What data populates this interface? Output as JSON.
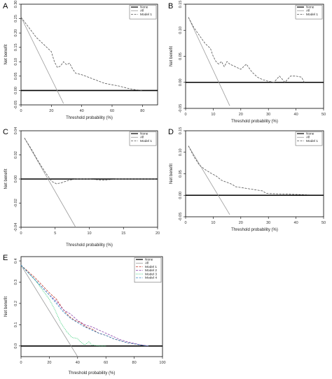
{
  "chart_data": [
    {
      "panel": "A",
      "type": "line",
      "xlabel": "Threshold probability (%)",
      "ylabel": "Net benefit",
      "xlim": [
        0,
        90
      ],
      "ylim": [
        -0.05,
        0.3
      ],
      "xticks": [
        0,
        20,
        40,
        60,
        80
      ],
      "yticks": [
        -0.05,
        0.0,
        0.05,
        0.1,
        0.15,
        0.2,
        0.25,
        0.3
      ],
      "ytick_labels": [
        "-0.05",
        "0.00",
        "0.05",
        "0.10",
        "0.15",
        "0.20",
        "0.25",
        "0.30"
      ],
      "legend": [
        "None",
        "All",
        "Model 1"
      ],
      "legend_position": "top-right",
      "series": [
        {
          "name": "None",
          "style": "solid",
          "color": "#000000",
          "width": 1.6,
          "x": [
            0,
            90
          ],
          "y": [
            0,
            0
          ]
        },
        {
          "name": "All",
          "style": "solid",
          "color": "#9a9a9a",
          "width": 0.8,
          "x": [
            0,
            28
          ],
          "y": [
            0.255,
            -0.045
          ]
        },
        {
          "name": "Model 1",
          "style": "dashed",
          "color": "#555555",
          "width": 0.8,
          "x": [
            0,
            5,
            10,
            15,
            20,
            22,
            24,
            26,
            28,
            30,
            32,
            34,
            36,
            40,
            45,
            50,
            55,
            60,
            65,
            70,
            75,
            80
          ],
          "y": [
            0.255,
            0.22,
            0.185,
            0.16,
            0.135,
            0.1,
            0.08,
            0.085,
            0.1,
            0.09,
            0.095,
            0.075,
            0.06,
            0.055,
            0.045,
            0.035,
            0.025,
            0.02,
            0.015,
            0.008,
            0.003,
            0.0
          ]
        }
      ]
    },
    {
      "panel": "B",
      "type": "line",
      "xlabel": "Threshold probability (%)",
      "ylabel": "Net benefit",
      "xlim": [
        0,
        50
      ],
      "ylim": [
        -0.05,
        0.15
      ],
      "xticks": [
        0,
        10,
        20,
        30,
        40,
        50
      ],
      "yticks": [
        -0.05,
        0.0,
        0.05,
        0.1,
        0.15
      ],
      "ytick_labels": [
        "-0.05",
        "0.00",
        "0.05",
        "0.10",
        "0.15"
      ],
      "legend": [
        "None",
        "All",
        "Model 1"
      ],
      "legend_position": "top-right",
      "series": [
        {
          "name": "None",
          "style": "solid",
          "color": "#000000",
          "width": 1.6,
          "x": [
            0,
            50
          ],
          "y": [
            0,
            0
          ]
        },
        {
          "name": "All",
          "style": "solid",
          "color": "#9a9a9a",
          "width": 0.8,
          "x": [
            1,
            16
          ],
          "y": [
            0.125,
            -0.045
          ]
        },
        {
          "name": "Model 1",
          "style": "dashed",
          "color": "#555555",
          "width": 0.8,
          "x": [
            1,
            3,
            5,
            7,
            9,
            10,
            11,
            12,
            13,
            14,
            15,
            16,
            18,
            20,
            22,
            24,
            26,
            28,
            30,
            32,
            34,
            36,
            38,
            40,
            42,
            43
          ],
          "y": [
            0.125,
            0.105,
            0.09,
            0.075,
            0.065,
            0.05,
            0.04,
            0.035,
            0.04,
            0.03,
            0.04,
            0.035,
            0.03,
            0.025,
            0.035,
            0.02,
            0.01,
            0.005,
            0.002,
            0.0,
            0.012,
            0.0,
            0.012,
            0.012,
            0.01,
            0.0
          ]
        }
      ]
    },
    {
      "panel": "C",
      "type": "line",
      "xlabel": "Threshold probability (%)",
      "ylabel": "Net benefit",
      "xlim": [
        0,
        20
      ],
      "ylim": [
        -0.04,
        0.04
      ],
      "xticks": [
        0,
        5,
        10,
        15,
        20
      ],
      "yticks": [
        -0.04,
        -0.02,
        0.0,
        0.02,
        0.04
      ],
      "ytick_labels": [
        "-0.04",
        "-0.02",
        "0.00",
        "0.02",
        "0.04"
      ],
      "legend": [
        "None",
        "All",
        "Model 1"
      ],
      "legend_position": "top-right",
      "series": [
        {
          "name": "None",
          "style": "solid",
          "color": "#000000",
          "width": 1.6,
          "x": [
            0,
            20
          ],
          "y": [
            0,
            0
          ]
        },
        {
          "name": "All",
          "style": "solid",
          "color": "#9a9a9a",
          "width": 0.8,
          "x": [
            0.5,
            8
          ],
          "y": [
            0.034,
            -0.04
          ]
        },
        {
          "name": "Model 1",
          "style": "dashed",
          "color": "#555555",
          "width": 0.8,
          "x": [
            0.5,
            1.5,
            2.5,
            3.5,
            4.5,
            5.2,
            6,
            7,
            8,
            10,
            12,
            14,
            16,
            18,
            20
          ],
          "y": [
            0.034,
            0.025,
            0.015,
            0.006,
            -0.002,
            -0.004,
            -0.003,
            -0.001,
            0.0,
            0.0,
            -0.001,
            0.0,
            0.0,
            0.0,
            0.0
          ]
        }
      ]
    },
    {
      "panel": "D",
      "type": "line",
      "xlabel": "Threshold probability (%)",
      "ylabel": "Net benefit",
      "xlim": [
        0,
        50
      ],
      "ylim": [
        -0.05,
        0.15
      ],
      "xticks": [
        0,
        10,
        20,
        30,
        40,
        50
      ],
      "yticks": [
        -0.05,
        0.0,
        0.05,
        0.1,
        0.15
      ],
      "ytick_labels": [
        "-0.05",
        "0.00",
        "0.05",
        "0.10",
        "0.15"
      ],
      "legend": [
        "None",
        "All",
        "Model 1"
      ],
      "legend_position": "top-right",
      "series": [
        {
          "name": "None",
          "style": "solid",
          "color": "#000000",
          "width": 1.6,
          "x": [
            0,
            50
          ],
          "y": [
            0,
            0
          ]
        },
        {
          "name": "All",
          "style": "solid",
          "color": "#9a9a9a",
          "width": 0.8,
          "x": [
            1,
            16
          ],
          "y": [
            0.115,
            -0.045
          ]
        },
        {
          "name": "Model 1",
          "style": "dashed",
          "color": "#555555",
          "width": 0.8,
          "x": [
            1,
            3,
            5,
            7,
            9,
            11,
            13,
            15,
            17,
            18,
            20,
            22,
            24,
            26,
            28,
            29,
            30,
            35,
            40,
            45,
            50
          ],
          "y": [
            0.115,
            0.09,
            0.07,
            0.06,
            0.052,
            0.045,
            0.035,
            0.03,
            0.025,
            0.02,
            0.018,
            0.016,
            0.014,
            0.012,
            0.01,
            0.005,
            0.004,
            0.003,
            0.002,
            0.001,
            0.001
          ]
        }
      ]
    },
    {
      "panel": "E",
      "type": "line",
      "xlabel": "Threshold probability (%)",
      "ylabel": "Net benefit",
      "xlim": [
        0,
        100
      ],
      "ylim": [
        -0.05,
        0.42
      ],
      "xticks": [
        0,
        20,
        40,
        60,
        80,
        100
      ],
      "yticks": [
        0.0,
        0.1,
        0.2,
        0.3,
        0.4
      ],
      "ytick_labels": [
        "0.0",
        "0.1",
        "0.2",
        "0.3",
        "0.4"
      ],
      "legend": [
        "None",
        "All",
        "Model 1",
        "Model 2",
        "Model 3",
        "Model 4"
      ],
      "legend_position": "top-right",
      "series": [
        {
          "name": "None",
          "style": "solid",
          "color": "#000000",
          "width": 1.6,
          "x": [
            0,
            100
          ],
          "y": [
            0,
            0
          ]
        },
        {
          "name": "All",
          "style": "solid",
          "color": "#9a9a9a",
          "width": 0.8,
          "x": [
            0,
            40
          ],
          "y": [
            0.38,
            -0.05
          ]
        },
        {
          "name": "Model 1",
          "style": "dashed",
          "color": "#c0392b",
          "width": 0.8,
          "x": [
            0,
            10,
            20,
            25,
            28,
            30,
            34,
            38,
            42,
            46,
            50,
            55,
            60,
            65,
            70,
            75,
            80,
            85,
            90
          ],
          "y": [
            0.38,
            0.32,
            0.25,
            0.22,
            0.19,
            0.17,
            0.14,
            0.12,
            0.11,
            0.09,
            0.08,
            0.06,
            0.05,
            0.035,
            0.025,
            0.015,
            0.01,
            0.005,
            0.0
          ]
        },
        {
          "name": "Model 2",
          "style": "dashed",
          "color": "#8e44ad",
          "width": 0.8,
          "x": [
            0,
            10,
            20,
            25,
            30,
            35,
            40,
            45,
            50,
            55,
            60,
            65,
            70,
            75,
            80,
            85,
            90
          ],
          "y": [
            0.38,
            0.31,
            0.24,
            0.21,
            0.17,
            0.15,
            0.12,
            0.1,
            0.09,
            0.075,
            0.06,
            0.045,
            0.03,
            0.02,
            0.012,
            0.005,
            0.0
          ]
        },
        {
          "name": "Model 3",
          "style": "dotted",
          "color": "#2ecc71",
          "width": 0.9,
          "x": [
            0,
            10,
            20,
            24,
            28,
            32,
            36,
            40,
            42,
            45,
            48,
            50,
            55,
            60
          ],
          "y": [
            0.38,
            0.31,
            0.22,
            0.17,
            0.11,
            0.07,
            0.04,
            0.035,
            0.02,
            0.005,
            0.02,
            0.005,
            0.0,
            0.0
          ]
        },
        {
          "name": "Model 4",
          "style": "dashed",
          "color": "#2e86c1",
          "width": 0.8,
          "x": [
            0,
            10,
            20,
            25,
            30,
            35,
            40,
            45,
            50,
            55,
            60,
            65,
            70,
            75,
            80,
            85,
            90
          ],
          "y": [
            0.38,
            0.31,
            0.24,
            0.2,
            0.16,
            0.13,
            0.11,
            0.09,
            0.075,
            0.06,
            0.05,
            0.035,
            0.025,
            0.015,
            0.01,
            0.004,
            0.0
          ]
        }
      ]
    }
  ]
}
